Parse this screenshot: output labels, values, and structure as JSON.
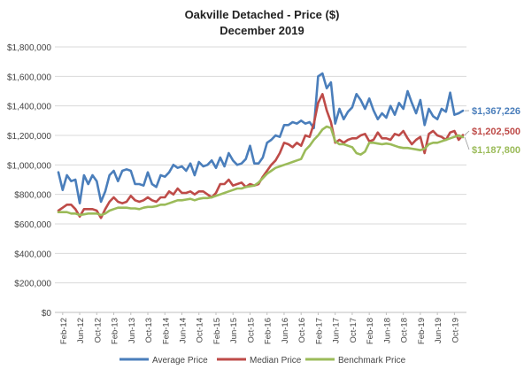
{
  "chart_data": {
    "type": "line",
    "title": "Oakville Detached - Price ($)",
    "subtitle": "December 2019",
    "ylim": [
      0,
      1800000
    ],
    "y_ticks": [
      0,
      200000,
      400000,
      600000,
      800000,
      1000000,
      1200000,
      1400000,
      1600000,
      1800000
    ],
    "y_tick_labels": [
      "$0",
      "$200,000",
      "$400,000",
      "$600,000",
      "$800,000",
      "$1,000,000",
      "$1,200,000",
      "$1,400,000",
      "$1,600,000",
      "$1,800,000"
    ],
    "x_tick_labels": [
      "Feb-12",
      "Jun-12",
      "Oct-12",
      "Feb-13",
      "Jun-13",
      "Oct-13",
      "Feb-14",
      "Jun-14",
      "Oct-14",
      "Feb-15",
      "Jun-15",
      "Oct-15",
      "Feb-16",
      "Jun-16",
      "Oct-16",
      "Feb-17",
      "Jun-17",
      "Oct-17",
      "Feb-18",
      "Jun-18",
      "Oct-18",
      "Feb-19",
      "Jun-19",
      "Oct-19"
    ],
    "grid": "horizontal",
    "legend_position": "bottom",
    "x": [
      "Jan-12",
      "Feb-12",
      "Mar-12",
      "Apr-12",
      "May-12",
      "Jun-12",
      "Jul-12",
      "Aug-12",
      "Sep-12",
      "Oct-12",
      "Nov-12",
      "Dec-12",
      "Jan-13",
      "Feb-13",
      "Mar-13",
      "Apr-13",
      "May-13",
      "Jun-13",
      "Jul-13",
      "Aug-13",
      "Sep-13",
      "Oct-13",
      "Nov-13",
      "Dec-13",
      "Jan-14",
      "Feb-14",
      "Mar-14",
      "Apr-14",
      "May-14",
      "Jun-14",
      "Jul-14",
      "Aug-14",
      "Sep-14",
      "Oct-14",
      "Nov-14",
      "Dec-14",
      "Jan-15",
      "Feb-15",
      "Mar-15",
      "Apr-15",
      "May-15",
      "Jun-15",
      "Jul-15",
      "Aug-15",
      "Sep-15",
      "Oct-15",
      "Nov-15",
      "Dec-15",
      "Jan-16",
      "Feb-16",
      "Mar-16",
      "Apr-16",
      "May-16",
      "Jun-16",
      "Jul-16",
      "Aug-16",
      "Sep-16",
      "Oct-16",
      "Nov-16",
      "Dec-16",
      "Jan-17",
      "Feb-17",
      "Mar-17",
      "Apr-17",
      "May-17",
      "Jun-17",
      "Jul-17",
      "Aug-17",
      "Sep-17",
      "Oct-17",
      "Nov-17",
      "Dec-17",
      "Jan-18",
      "Feb-18",
      "Mar-18",
      "Apr-18",
      "May-18",
      "Jun-18",
      "Jul-18",
      "Aug-18",
      "Sep-18",
      "Oct-18",
      "Nov-18",
      "Dec-18",
      "Jan-19",
      "Feb-19",
      "Mar-19",
      "Apr-19",
      "May-19",
      "Jun-19",
      "Jul-19",
      "Aug-19",
      "Sep-19",
      "Oct-19",
      "Nov-19",
      "Dec-19"
    ],
    "series": [
      {
        "name": "Average Price",
        "color": "#4A7EBB",
        "end_label": "$1,367,226",
        "values": [
          950000,
          830000,
          930000,
          890000,
          900000,
          740000,
          930000,
          870000,
          930000,
          890000,
          750000,
          820000,
          930000,
          960000,
          890000,
          960000,
          970000,
          960000,
          870000,
          870000,
          860000,
          950000,
          870000,
          850000,
          930000,
          920000,
          950000,
          1000000,
          980000,
          990000,
          960000,
          1010000,
          930000,
          1020000,
          990000,
          1000000,
          1030000,
          980000,
          1050000,
          990000,
          1080000,
          1030000,
          1000000,
          1010000,
          1040000,
          1130000,
          1010000,
          1010000,
          1050000,
          1150000,
          1170000,
          1200000,
          1190000,
          1270000,
          1270000,
          1290000,
          1280000,
          1300000,
          1280000,
          1290000,
          1250000,
          1600000,
          1620000,
          1520000,
          1560000,
          1280000,
          1380000,
          1310000,
          1360000,
          1390000,
          1480000,
          1440000,
          1380000,
          1450000,
          1370000,
          1310000,
          1350000,
          1320000,
          1400000,
          1340000,
          1420000,
          1380000,
          1500000,
          1420000,
          1350000,
          1440000,
          1270000,
          1380000,
          1330000,
          1310000,
          1380000,
          1360000,
          1490000,
          1340000,
          1350000,
          1367226
        ]
      },
      {
        "name": "Median Price",
        "color": "#BE4B48",
        "end_label": "$1,202,500",
        "values": [
          690000,
          710000,
          730000,
          730000,
          700000,
          650000,
          700000,
          700000,
          700000,
          690000,
          640000,
          700000,
          750000,
          780000,
          750000,
          740000,
          750000,
          790000,
          760000,
          750000,
          760000,
          780000,
          760000,
          750000,
          780000,
          780000,
          820000,
          800000,
          840000,
          810000,
          810000,
          820000,
          800000,
          820000,
          820000,
          800000,
          780000,
          810000,
          870000,
          870000,
          900000,
          860000,
          870000,
          880000,
          850000,
          870000,
          860000,
          870000,
          920000,
          960000,
          1000000,
          1030000,
          1080000,
          1150000,
          1140000,
          1120000,
          1150000,
          1130000,
          1200000,
          1190000,
          1280000,
          1420000,
          1480000,
          1370000,
          1290000,
          1150000,
          1170000,
          1150000,
          1170000,
          1180000,
          1180000,
          1200000,
          1210000,
          1160000,
          1170000,
          1220000,
          1180000,
          1180000,
          1170000,
          1210000,
          1200000,
          1230000,
          1180000,
          1140000,
          1170000,
          1190000,
          1080000,
          1210000,
          1230000,
          1200000,
          1190000,
          1170000,
          1220000,
          1230000,
          1170000,
          1202500
        ]
      },
      {
        "name": "Benchmark Price",
        "color": "#9BBB59",
        "end_label": "$1,187,800",
        "values": [
          680000,
          680000,
          680000,
          670000,
          670000,
          660000,
          665000,
          670000,
          670000,
          670000,
          660000,
          670000,
          690000,
          700000,
          710000,
          710000,
          710000,
          705000,
          705000,
          700000,
          710000,
          715000,
          715000,
          720000,
          730000,
          730000,
          740000,
          750000,
          760000,
          760000,
          765000,
          770000,
          760000,
          770000,
          775000,
          775000,
          780000,
          790000,
          800000,
          810000,
          820000,
          830000,
          840000,
          840000,
          850000,
          855000,
          860000,
          880000,
          910000,
          940000,
          960000,
          980000,
          990000,
          1000000,
          1010000,
          1020000,
          1030000,
          1040000,
          1100000,
          1130000,
          1170000,
          1200000,
          1240000,
          1260000,
          1250000,
          1160000,
          1140000,
          1140000,
          1130000,
          1120000,
          1080000,
          1070000,
          1090000,
          1150000,
          1150000,
          1145000,
          1140000,
          1145000,
          1140000,
          1130000,
          1120000,
          1115000,
          1115000,
          1110000,
          1105000,
          1100000,
          1110000,
          1140000,
          1150000,
          1150000,
          1160000,
          1170000,
          1180000,
          1190000,
          1200000,
          1187800
        ]
      }
    ]
  }
}
